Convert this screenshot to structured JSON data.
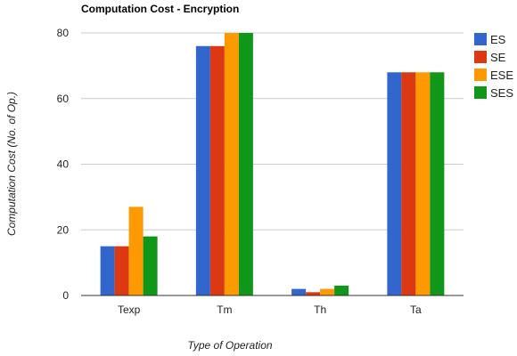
{
  "chart_data": {
    "type": "bar",
    "title": "Computation Cost - Encryption",
    "xlabel": "Type of Operation",
    "ylabel": "Computation Cost (No. of Op.)",
    "categories": [
      "Texp",
      "Tm",
      "Th",
      "Ta"
    ],
    "ylim": [
      0,
      80
    ],
    "yticks": [
      0,
      20,
      40,
      60,
      80
    ],
    "grid": true,
    "legend_position": "right",
    "series": [
      {
        "name": "ES",
        "color": "#3366cc",
        "values": [
          15,
          76,
          2,
          68
        ]
      },
      {
        "name": "SE",
        "color": "#dc3912",
        "values": [
          15,
          76,
          1,
          68
        ]
      },
      {
        "name": "ESE",
        "color": "#ff9900",
        "values": [
          27,
          80,
          2,
          68
        ]
      },
      {
        "name": "SES",
        "color": "#109618",
        "values": [
          18,
          80,
          3,
          68
        ]
      }
    ]
  }
}
